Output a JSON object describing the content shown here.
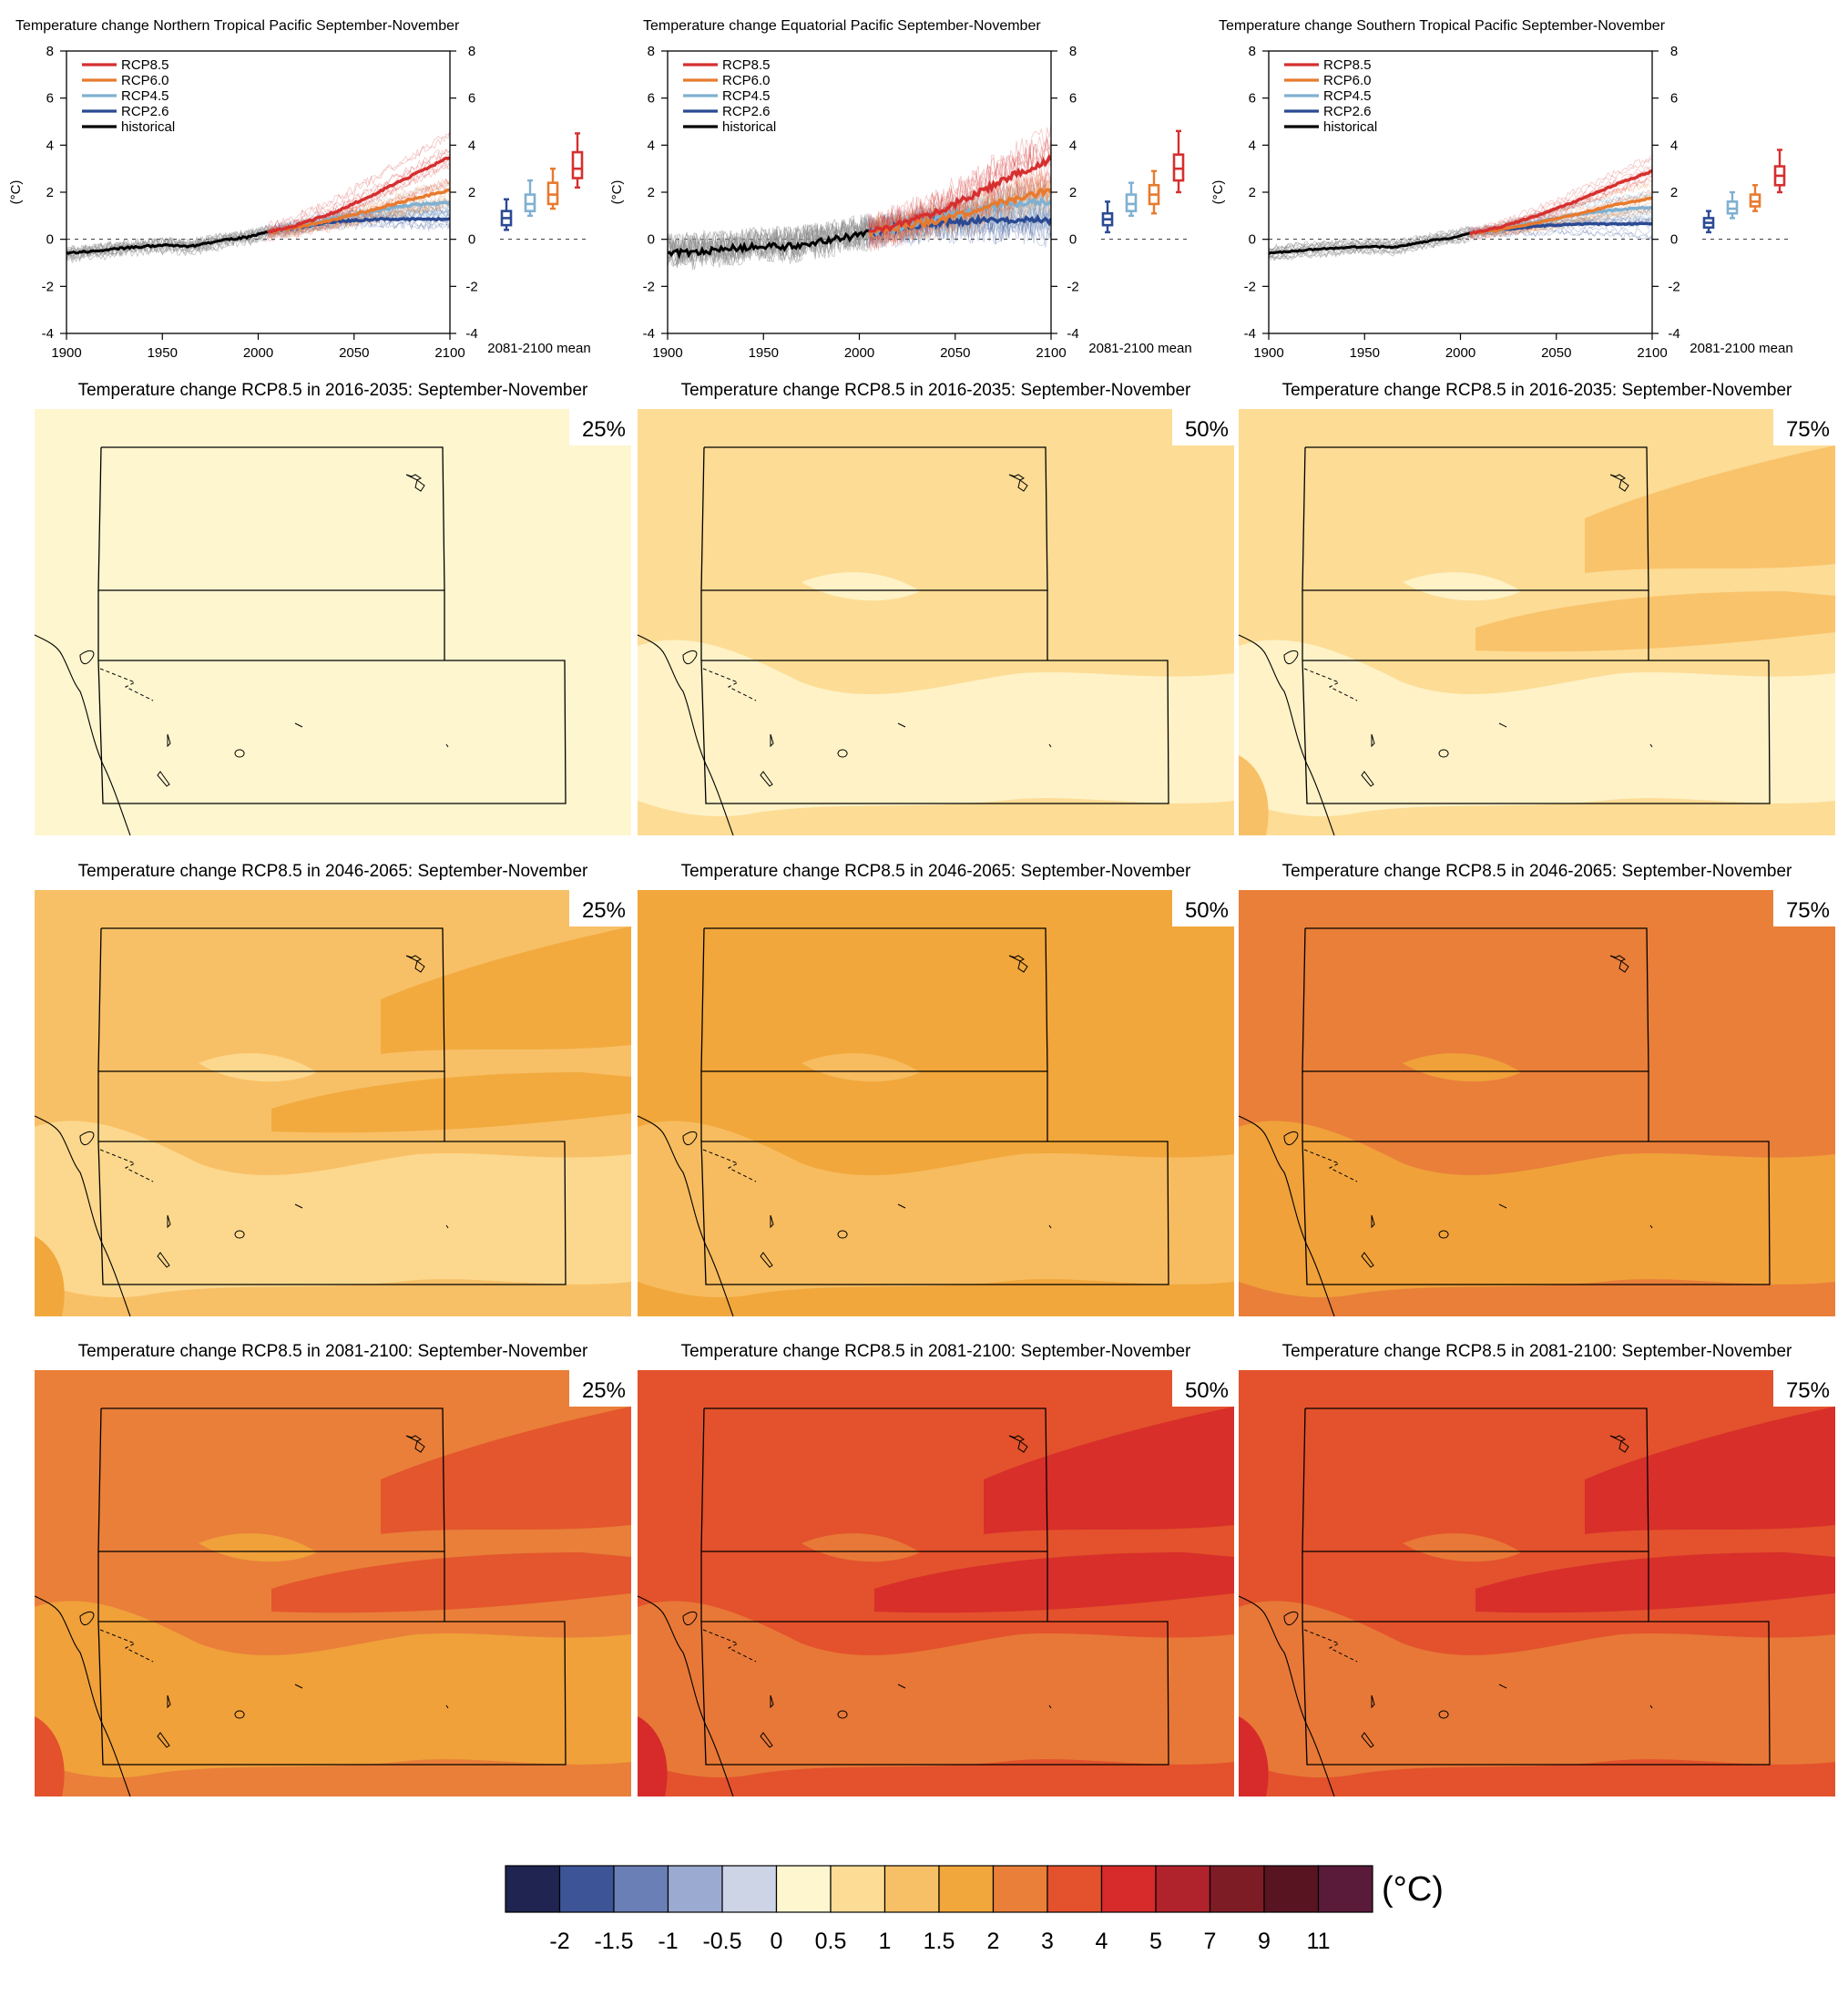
{
  "colors": {
    "rcp85": "#d62f2f",
    "rcp60": "#e87a2e",
    "rcp45": "#7fb0d1",
    "rcp26": "#2b4a94",
    "historical": "#000000",
    "hist_ensemble": "#8c8c8c"
  },
  "chart_data": [
    {
      "type": "line",
      "title": "Temperature change Northern Tropical Pacific September-November",
      "ylabel": "(°C)",
      "xlim": [
        1900,
        2100
      ],
      "ylim": [
        -4,
        8
      ],
      "x_ticks": [
        "1900",
        "1950",
        "2000",
        "2050",
        "2100"
      ],
      "y_ticks": [
        "-4",
        "-2",
        "0",
        "2",
        "4",
        "6",
        "8"
      ],
      "box_label": "2081-2100 mean",
      "legend_position": "top-left",
      "noise": 0.18,
      "series": [
        {
          "name": "historical",
          "x": [
            1900,
            1920,
            1940,
            1955,
            1965,
            1975,
            1985,
            1995,
            2005
          ],
          "y": [
            -0.6,
            -0.45,
            -0.3,
            -0.25,
            -0.3,
            -0.15,
            0.0,
            0.1,
            0.3
          ]
        },
        {
          "name": "RCP2.6",
          "x": [
            2005,
            2020,
            2040,
            2060,
            2080,
            2100
          ],
          "y": [
            0.3,
            0.5,
            0.75,
            0.85,
            0.85,
            0.85
          ]
        },
        {
          "name": "RCP4.5",
          "x": [
            2005,
            2020,
            2040,
            2060,
            2080,
            2100
          ],
          "y": [
            0.3,
            0.5,
            0.9,
            1.2,
            1.45,
            1.55
          ]
        },
        {
          "name": "RCP6.0",
          "x": [
            2005,
            2020,
            2040,
            2060,
            2080,
            2100
          ],
          "y": [
            0.3,
            0.5,
            0.85,
            1.25,
            1.7,
            2.1
          ]
        },
        {
          "name": "RCP8.5",
          "x": [
            2005,
            2020,
            2040,
            2060,
            2080,
            2100
          ],
          "y": [
            0.3,
            0.6,
            1.15,
            1.9,
            2.7,
            3.5
          ]
        }
      ],
      "boxes": [
        {
          "name": "RCP2.6",
          "min": 0.4,
          "q1": 0.6,
          "median": 0.9,
          "q3": 1.2,
          "max": 1.7
        },
        {
          "name": "RCP4.5",
          "min": 1.0,
          "q1": 1.2,
          "median": 1.5,
          "q3": 1.9,
          "max": 2.5
        },
        {
          "name": "RCP6.0",
          "min": 1.3,
          "q1": 1.5,
          "median": 1.9,
          "q3": 2.4,
          "max": 3.0
        },
        {
          "name": "RCP8.5",
          "min": 2.2,
          "q1": 2.6,
          "median": 3.0,
          "q3": 3.7,
          "max": 4.5
        }
      ]
    },
    {
      "type": "line",
      "title": "Temperature change Equatorial Pacific September-November",
      "ylabel": "(°C)",
      "xlim": [
        1900,
        2100
      ],
      "ylim": [
        -4,
        8
      ],
      "x_ticks": [
        "1900",
        "1950",
        "2000",
        "2050",
        "2100"
      ],
      "y_ticks": [
        "-4",
        "-2",
        "0",
        "2",
        "4",
        "6",
        "8"
      ],
      "box_label": "2081-2100 mean",
      "legend_position": "top-left",
      "noise": 0.6,
      "series": [
        {
          "name": "historical",
          "x": [
            1900,
            1920,
            1940,
            1955,
            1965,
            1975,
            1985,
            1995,
            2005
          ],
          "y": [
            -0.6,
            -0.5,
            -0.35,
            -0.3,
            -0.3,
            -0.15,
            0.0,
            0.1,
            0.3
          ]
        },
        {
          "name": "RCP2.6",
          "x": [
            2005,
            2020,
            2040,
            2060,
            2080,
            2100
          ],
          "y": [
            0.3,
            0.5,
            0.7,
            0.8,
            0.8,
            0.8
          ]
        },
        {
          "name": "RCP4.5",
          "x": [
            2005,
            2020,
            2040,
            2060,
            2080,
            2100
          ],
          "y": [
            0.3,
            0.5,
            0.9,
            1.25,
            1.5,
            1.6
          ]
        },
        {
          "name": "RCP6.0",
          "x": [
            2005,
            2020,
            2040,
            2060,
            2080,
            2100
          ],
          "y": [
            0.3,
            0.5,
            0.8,
            1.2,
            1.7,
            2.1
          ]
        },
        {
          "name": "RCP8.5",
          "x": [
            2005,
            2020,
            2040,
            2060,
            2080,
            2100
          ],
          "y": [
            0.3,
            0.6,
            1.15,
            1.9,
            2.7,
            3.4
          ]
        }
      ],
      "boxes": [
        {
          "name": "RCP2.6",
          "min": 0.3,
          "q1": 0.6,
          "median": 0.85,
          "q3": 1.1,
          "max": 1.6
        },
        {
          "name": "RCP4.5",
          "min": 1.0,
          "q1": 1.2,
          "median": 1.5,
          "q3": 1.9,
          "max": 2.4
        },
        {
          "name": "RCP6.0",
          "min": 1.1,
          "q1": 1.5,
          "median": 1.9,
          "q3": 2.3,
          "max": 2.9
        },
        {
          "name": "RCP8.5",
          "min": 2.0,
          "q1": 2.5,
          "median": 3.0,
          "q3": 3.6,
          "max": 4.6
        }
      ]
    },
    {
      "type": "line",
      "title": "Temperature change Southern Tropical Pacific September-November",
      "ylabel": "(°C)",
      "xlim": [
        1900,
        2100
      ],
      "ylim": [
        -4,
        8
      ],
      "x_ticks": [
        "1900",
        "1950",
        "2000",
        "2050",
        "2100"
      ],
      "y_ticks": [
        "-4",
        "-2",
        "0",
        "2",
        "4",
        "6",
        "8"
      ],
      "box_label": "2081-2100 mean",
      "legend_position": "top-left",
      "noise": 0.12,
      "series": [
        {
          "name": "historical",
          "x": [
            1900,
            1920,
            1940,
            1955,
            1965,
            1975,
            1985,
            1995,
            2005
          ],
          "y": [
            -0.6,
            -0.45,
            -0.35,
            -0.3,
            -0.35,
            -0.2,
            -0.05,
            0.05,
            0.25
          ]
        },
        {
          "name": "RCP2.6",
          "x": [
            2005,
            2020,
            2040,
            2060,
            2080,
            2100
          ],
          "y": [
            0.25,
            0.4,
            0.55,
            0.65,
            0.65,
            0.65
          ]
        },
        {
          "name": "RCP4.5",
          "x": [
            2005,
            2020,
            2040,
            2060,
            2080,
            2100
          ],
          "y": [
            0.25,
            0.4,
            0.75,
            1.05,
            1.25,
            1.35
          ]
        },
        {
          "name": "RCP6.0",
          "x": [
            2005,
            2020,
            2040,
            2060,
            2080,
            2100
          ],
          "y": [
            0.25,
            0.4,
            0.7,
            1.05,
            1.45,
            1.75
          ]
        },
        {
          "name": "RCP8.5",
          "x": [
            2005,
            2020,
            2040,
            2060,
            2080,
            2100
          ],
          "y": [
            0.25,
            0.5,
            1.0,
            1.6,
            2.3,
            2.9
          ]
        }
      ],
      "boxes": [
        {
          "name": "RCP2.6",
          "min": 0.3,
          "q1": 0.5,
          "median": 0.7,
          "q3": 0.9,
          "max": 1.2
        },
        {
          "name": "RCP4.5",
          "min": 0.9,
          "q1": 1.1,
          "median": 1.3,
          "q3": 1.6,
          "max": 2.0
        },
        {
          "name": "RCP6.0",
          "min": 1.2,
          "q1": 1.4,
          "median": 1.6,
          "q3": 1.9,
          "max": 2.3
        },
        {
          "name": "RCP8.5",
          "min": 2.0,
          "q1": 2.3,
          "median": 2.7,
          "q3": 3.1,
          "max": 3.8
        }
      ]
    },
    {
      "type": "heatmap",
      "colorbar": {
        "unit": "(°C)",
        "tick_labels": [
          "-2",
          "-1.5",
          "-1",
          "-0.5",
          "0",
          "0.5",
          "1",
          "1.5",
          "2",
          "3",
          "4",
          "5",
          "7",
          "9",
          "11"
        ],
        "colors": [
          "#1f2550",
          "#3d5496",
          "#6a7fb5",
          "#9aaad0",
          "#ccd4e6",
          "#fef6cf",
          "#fddc95",
          "#f8c066",
          "#f1a73b",
          "#e97f39",
          "#e3522c",
          "#d62b2a",
          "#b0232c",
          "#7e1c25",
          "#591421",
          "#5a1a3a"
        ]
      },
      "maps": [
        {
          "title": "Temperature change RCP8.5 in 2016-2035: September-November",
          "percentile": "25%",
          "base": 5,
          "warm": 0,
          "cool": 5
        },
        {
          "title": "Temperature change RCP8.5 in 2016-2035: September-November",
          "percentile": "50%",
          "base": 6,
          "warm": 0,
          "cool": 5
        },
        {
          "title": "Temperature change RCP8.5 in 2016-2035: September-November",
          "percentile": "75%",
          "base": 6,
          "warm": 7,
          "cool": 5
        },
        {
          "title": "Temperature change RCP8.5 in 2046-2065: September-November",
          "percentile": "25%",
          "base": 7,
          "warm": 8,
          "cool": 6
        },
        {
          "title": "Temperature change RCP8.5 in 2046-2065: September-November",
          "percentile": "50%",
          "base": 8,
          "warm": 0,
          "cool": 7
        },
        {
          "title": "Temperature change RCP8.5 in 2046-2065: September-November",
          "percentile": "75%",
          "base": 9,
          "warm": 0,
          "cool": 8
        },
        {
          "title": "Temperature change RCP8.5 in 2081-2100: September-November",
          "percentile": "25%",
          "base": 9,
          "warm": 10,
          "cool": 8
        },
        {
          "title": "Temperature change RCP8.5 in 2081-2100: September-November",
          "percentile": "50%",
          "base": 10,
          "warm": 11,
          "cool": 9
        },
        {
          "title": "Temperature change RCP8.5 in 2081-2100: September-November",
          "percentile": "75%",
          "base": 10,
          "warm": 11,
          "cool": 9
        }
      ]
    }
  ]
}
